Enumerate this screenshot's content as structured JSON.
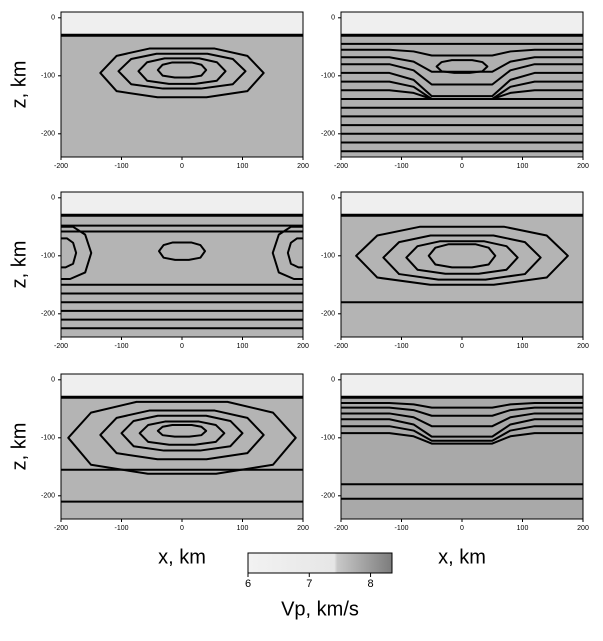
{
  "chart_data": {
    "type": "contour-grid",
    "xlim": [
      -200,
      200
    ],
    "xticks": [
      -200,
      -100,
      0,
      100,
      200
    ],
    "ylim": [
      -240,
      10
    ],
    "yticks": [
      0,
      -100,
      -200
    ],
    "xlabel": "x, km",
    "ylabel": "z, km",
    "colorbar": {
      "label": "Vp, km/s",
      "lim": [
        6,
        8.35
      ],
      "ticks": [
        6,
        7,
        8
      ]
    }
  }
}
